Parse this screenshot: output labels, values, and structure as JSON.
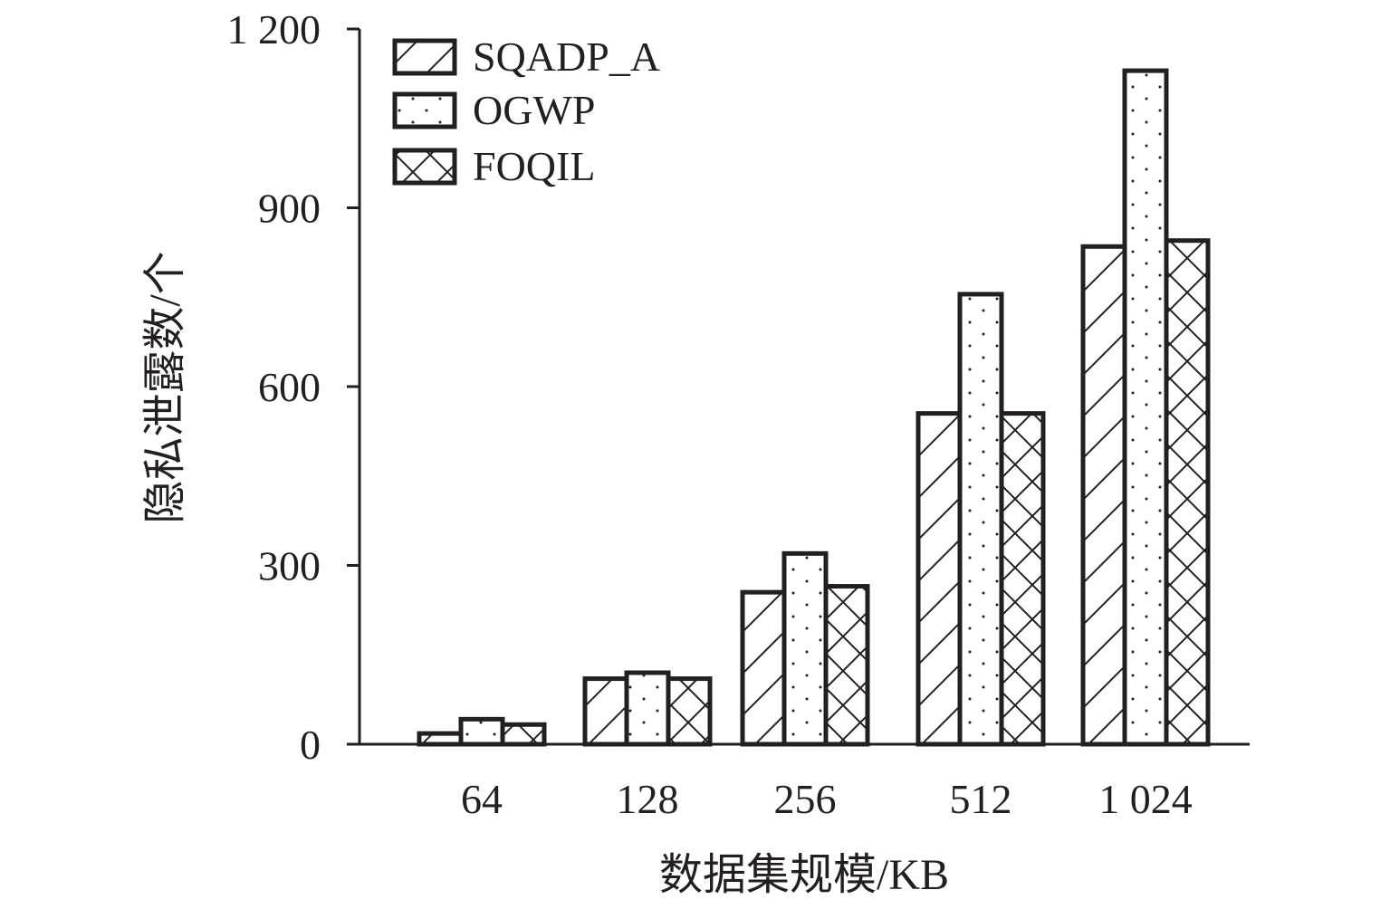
{
  "chart_data": {
    "type": "bar",
    "categories": [
      "64",
      "128",
      "256",
      "512",
      "1 024"
    ],
    "series": [
      {
        "name": "SQADP_A",
        "pattern": "diagonal-hatch",
        "values": [
          18,
          110,
          255,
          555,
          835
        ]
      },
      {
        "name": "OGWP",
        "pattern": "dots",
        "values": [
          42,
          120,
          320,
          755,
          1130
        ]
      },
      {
        "name": "FOQIL",
        "pattern": "crosshatch",
        "values": [
          33,
          110,
          265,
          555,
          845
        ]
      }
    ],
    "ylim": [
      0,
      1200
    ],
    "yticks": [
      0,
      300,
      600,
      900,
      1200
    ],
    "ytick_labels": [
      "0",
      "300",
      "600",
      "900",
      "1 200"
    ],
    "xlabel": "数据集规模/KB",
    "ylabel": "隐私泄露数/个",
    "legend_position": "top-left",
    "grid": false,
    "colors": {
      "ink": "#231f20",
      "fill": "#ffffff"
    }
  }
}
